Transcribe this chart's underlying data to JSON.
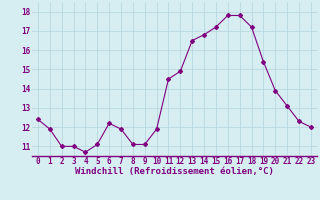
{
  "x": [
    0,
    1,
    2,
    3,
    4,
    5,
    6,
    7,
    8,
    9,
    10,
    11,
    12,
    13,
    14,
    15,
    16,
    17,
    18,
    19,
    20,
    21,
    22,
    23
  ],
  "y": [
    12.4,
    11.9,
    11.0,
    11.0,
    10.7,
    11.1,
    12.2,
    11.9,
    11.1,
    11.1,
    11.9,
    14.5,
    14.9,
    16.5,
    16.8,
    17.2,
    17.8,
    17.8,
    17.2,
    15.4,
    13.9,
    13.1,
    12.3,
    12.0
  ],
  "line_color": "#800080",
  "marker": "D",
  "marker_size": 2,
  "bg_color": "#d6eef2",
  "grid_color": "#b8d8e0",
  "xlabel": "Windchill (Refroidissement éolien,°C)",
  "xlabel_color": "#800080",
  "tick_color": "#800080",
  "ylim": [
    10.5,
    18.5
  ],
  "xlim": [
    -0.5,
    23.5
  ],
  "yticks": [
    11,
    12,
    13,
    14,
    15,
    16,
    17,
    18
  ],
  "xticks": [
    0,
    1,
    2,
    3,
    4,
    5,
    6,
    7,
    8,
    9,
    10,
    11,
    12,
    13,
    14,
    15,
    16,
    17,
    18,
    19,
    20,
    21,
    22,
    23
  ],
  "tick_fontsize": 5.5,
  "xlabel_fontsize": 6.5,
  "spine_color": "#800080"
}
